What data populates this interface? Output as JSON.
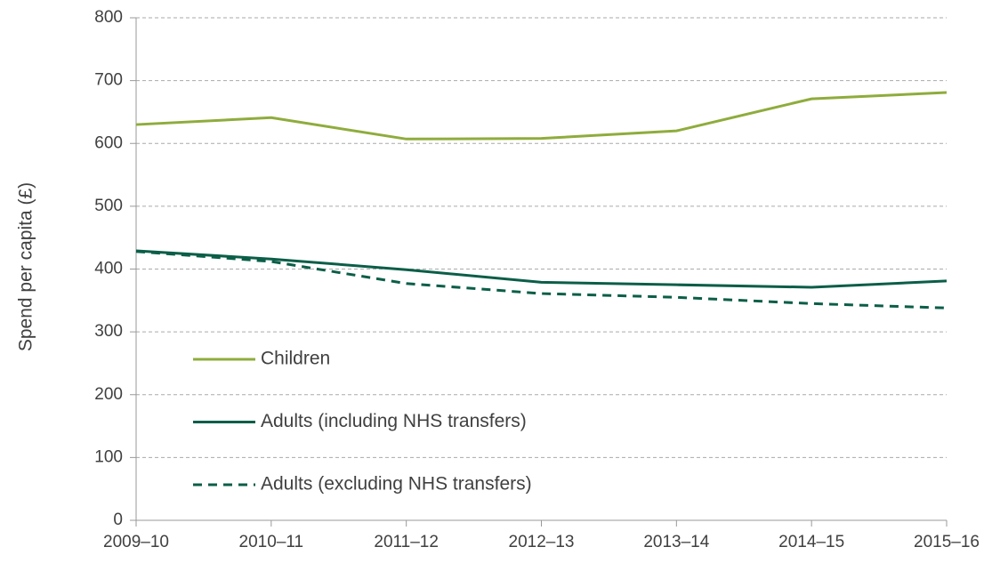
{
  "chart_data": {
    "type": "line",
    "y_label": "Spend per capita (£)",
    "categories": [
      "2009–10",
      "2010–11",
      "2011–12",
      "2012–13",
      "2013–14",
      "2014–15",
      "2015–16"
    ],
    "series": [
      {
        "name": "Children",
        "color": "#8fac3c",
        "line_style": "solid",
        "values": [
          630,
          641,
          607,
          608,
          620,
          671,
          681
        ]
      },
      {
        "name": "Adults (including NHS transfers)",
        "color": "#0b5e47",
        "line_style": "solid",
        "values": [
          429,
          416,
          399,
          379,
          375,
          371,
          381
        ]
      },
      {
        "name": "Adults (excluding NHS transfers)",
        "color": "#0b5e47",
        "line_style": "dashed",
        "values": [
          428,
          412,
          377,
          361,
          355,
          345,
          338
        ]
      }
    ],
    "ylim": [
      0,
      800
    ],
    "yticks": [
      0,
      100,
      200,
      300,
      400,
      500,
      600,
      700,
      800
    ],
    "grid": true,
    "legend": "lower left"
  }
}
